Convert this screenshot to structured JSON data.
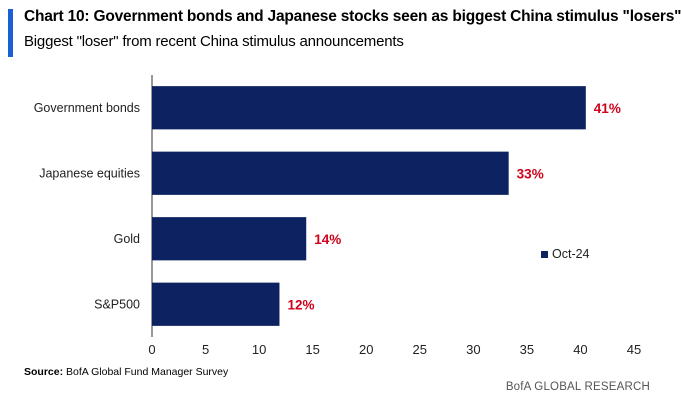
{
  "title": "Chart 10: Government bonds and Japanese stocks seen as biggest China stimulus \"losers\"",
  "subtitle": "Biggest \"loser\" from recent China stimulus announcements",
  "source_label": "Source:",
  "source_text": "BofA Global Fund Manager Survey",
  "brand": "BofA GLOBAL RESEARCH",
  "colors": {
    "bar": "#0d2260",
    "value_label": "#d0021b",
    "title_accent": "#1a5fd6"
  },
  "chart_data": {
    "type": "bar",
    "orientation": "horizontal",
    "categories": [
      "Government bonds",
      "Japanese equities",
      "Gold",
      "S&P500"
    ],
    "series": [
      {
        "name": "Oct-24",
        "values": [
          40.5,
          33.3,
          14.4,
          11.9
        ]
      }
    ],
    "data_labels": [
      "41%",
      "33%",
      "14%",
      "12%"
    ],
    "xlim": [
      0,
      45
    ],
    "xticks": [
      0,
      5,
      10,
      15,
      20,
      25,
      30,
      35,
      40,
      45
    ],
    "grid": false,
    "legend_position": "right"
  }
}
